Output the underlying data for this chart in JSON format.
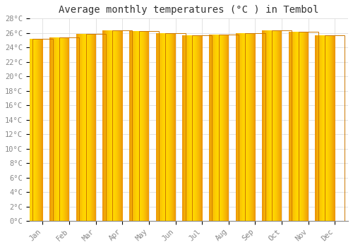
{
  "title": "Average monthly temperatures (°C ) in Tembol",
  "months": [
    "Jan",
    "Feb",
    "Mar",
    "Apr",
    "May",
    "Jun",
    "Jul",
    "Aug",
    "Sep",
    "Oct",
    "Nov",
    "Dec"
  ],
  "values": [
    25.2,
    25.4,
    25.9,
    26.4,
    26.3,
    26.0,
    25.7,
    25.8,
    26.0,
    26.4,
    26.2,
    25.7
  ],
  "bar_color_center": "#FFD700",
  "bar_color_edge": "#E8880A",
  "bar_outline_color": "#CC7700",
  "ylim": [
    0,
    28
  ],
  "yticks": [
    0,
    2,
    4,
    6,
    8,
    10,
    12,
    14,
    16,
    18,
    20,
    22,
    24,
    26,
    28
  ],
  "ytick_labels": [
    "0°C",
    "2°C",
    "4°C",
    "6°C",
    "8°C",
    "10°C",
    "12°C",
    "14°C",
    "16°C",
    "18°C",
    "20°C",
    "22°C",
    "24°C",
    "26°C",
    "28°C"
  ],
  "background_color": "#ffffff",
  "grid_color": "#dddddd",
  "title_fontsize": 10,
  "tick_fontsize": 7.5,
  "font_family": "monospace",
  "bar_width": 0.75
}
